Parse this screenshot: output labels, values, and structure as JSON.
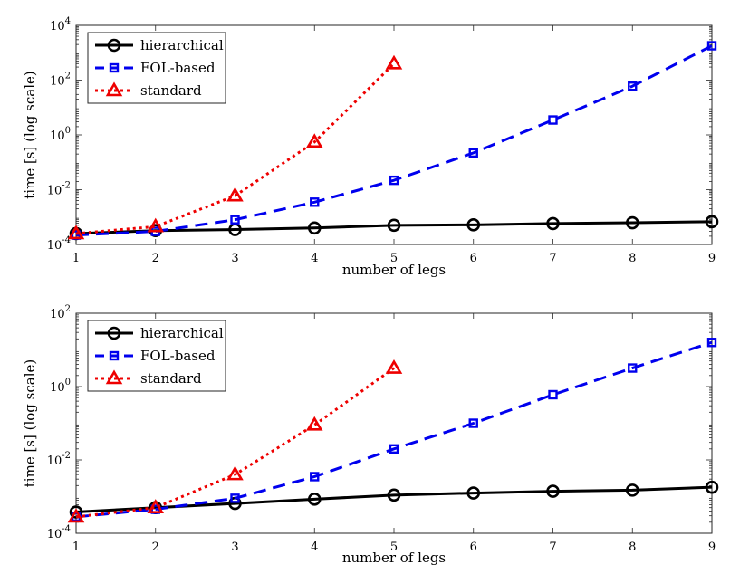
{
  "chart_data": [
    {
      "type": "line",
      "yscale": "log",
      "xlabel": "number of legs",
      "ylabel": "time [s] (log scale)",
      "xlim": [
        1,
        9
      ],
      "ylim": [
        0.0001,
        10000
      ],
      "xticks": [
        "1",
        "2",
        "3",
        "4",
        "5",
        "6",
        "7",
        "8",
        "9"
      ],
      "yticks": [
        {
          "value": 0.0001,
          "base": "10",
          "exp": "-4"
        },
        {
          "value": 0.01,
          "base": "10",
          "exp": "-2"
        },
        {
          "value": 1,
          "base": "10",
          "exp": "0"
        },
        {
          "value": 100,
          "base": "10",
          "exp": "2"
        },
        {
          "value": 10000,
          "base": "10",
          "exp": "4"
        }
      ],
      "legend_position": "top-left",
      "series": [
        {
          "name": "hierarchical",
          "color": "#000000",
          "marker": "circle",
          "style": "solid",
          "x": [
            1,
            2,
            3,
            4,
            5,
            6,
            7,
            8,
            9
          ],
          "y": [
            0.00025,
            0.00032,
            0.00035,
            0.0004,
            0.0005,
            0.00052,
            0.00058,
            0.00062,
            0.00068
          ]
        },
        {
          "name": "FOL-based",
          "color": "#0000ee",
          "marker": "square",
          "style": "dashed",
          "x": [
            1,
            2,
            3,
            4,
            5,
            6,
            7,
            8,
            9
          ],
          "y": [
            0.00022,
            0.0003,
            0.0008,
            0.0035,
            0.022,
            0.22,
            3.5,
            60,
            1800
          ]
        },
        {
          "name": "standard",
          "color": "#ee0000",
          "marker": "triangle",
          "style": "dotted",
          "x": [
            1,
            2,
            3,
            4,
            5
          ],
          "y": [
            0.00025,
            0.00045,
            0.006,
            0.55,
            400
          ]
        }
      ]
    },
    {
      "type": "line",
      "yscale": "log",
      "xlabel": "number of legs",
      "ylabel": "time [s] (log scale)",
      "xlim": [
        1,
        9
      ],
      "ylim": [
        0.0001,
        100
      ],
      "xticks": [
        "1",
        "2",
        "3",
        "4",
        "5",
        "6",
        "7",
        "8",
        "9"
      ],
      "yticks": [
        {
          "value": 0.0001,
          "base": "10",
          "exp": "-4"
        },
        {
          "value": 0.01,
          "base": "10",
          "exp": "-2"
        },
        {
          "value": 1,
          "base": "10",
          "exp": "0"
        },
        {
          "value": 100,
          "base": "10",
          "exp": "2"
        }
      ],
      "legend_position": "top-left",
      "series": [
        {
          "name": "hierarchical",
          "color": "#000000",
          "marker": "circle",
          "style": "solid",
          "x": [
            1,
            2,
            3,
            4,
            5,
            6,
            7,
            8,
            9
          ],
          "y": [
            0.00038,
            0.0005,
            0.00065,
            0.00085,
            0.0011,
            0.00125,
            0.0014,
            0.0015,
            0.0018
          ]
        },
        {
          "name": "FOL-based",
          "color": "#0000ee",
          "marker": "square",
          "style": "dashed",
          "x": [
            1,
            2,
            3,
            4,
            5,
            6,
            7,
            8,
            9
          ],
          "y": [
            0.00028,
            0.00045,
            0.0009,
            0.0035,
            0.02,
            0.1,
            0.6,
            3.2,
            16
          ]
        },
        {
          "name": "standard",
          "color": "#ee0000",
          "marker": "triangle",
          "style": "dotted",
          "x": [
            1,
            2,
            3,
            4,
            5
          ],
          "y": [
            0.00028,
            0.0005,
            0.004,
            0.09,
            3.2
          ]
        }
      ]
    }
  ]
}
